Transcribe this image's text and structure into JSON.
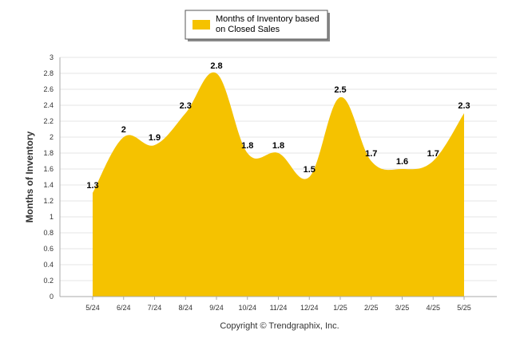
{
  "chart_data": {
    "type": "area",
    "categories": [
      "5/24",
      "6/24",
      "7/24",
      "8/24",
      "9/24",
      "10/24",
      "11/24",
      "12/24",
      "1/25",
      "2/25",
      "3/25",
      "4/25",
      "5/25"
    ],
    "series": [
      {
        "name": "Months of Inventory based on Closed Sales",
        "values": [
          1.3,
          2,
          1.9,
          2.3,
          2.8,
          1.8,
          1.8,
          1.5,
          2.5,
          1.7,
          1.6,
          1.7,
          2.3
        ],
        "color": "#f5c200"
      }
    ],
    "ylabel": "Months of Inventory",
    "xlabel": "",
    "ylim": [
      0,
      3
    ],
    "yticks": [
      0,
      0.2,
      0.4,
      0.6,
      0.8,
      1,
      1.2,
      1.4,
      1.6,
      1.8,
      2,
      2.2,
      2.4,
      2.6,
      2.8,
      3
    ],
    "grid": true,
    "legend_position": "top-center",
    "legend_lines": [
      "Months of Inventory based",
      "on Closed Sales"
    ],
    "credit": "Copyright © Trendgraphix, Inc."
  }
}
